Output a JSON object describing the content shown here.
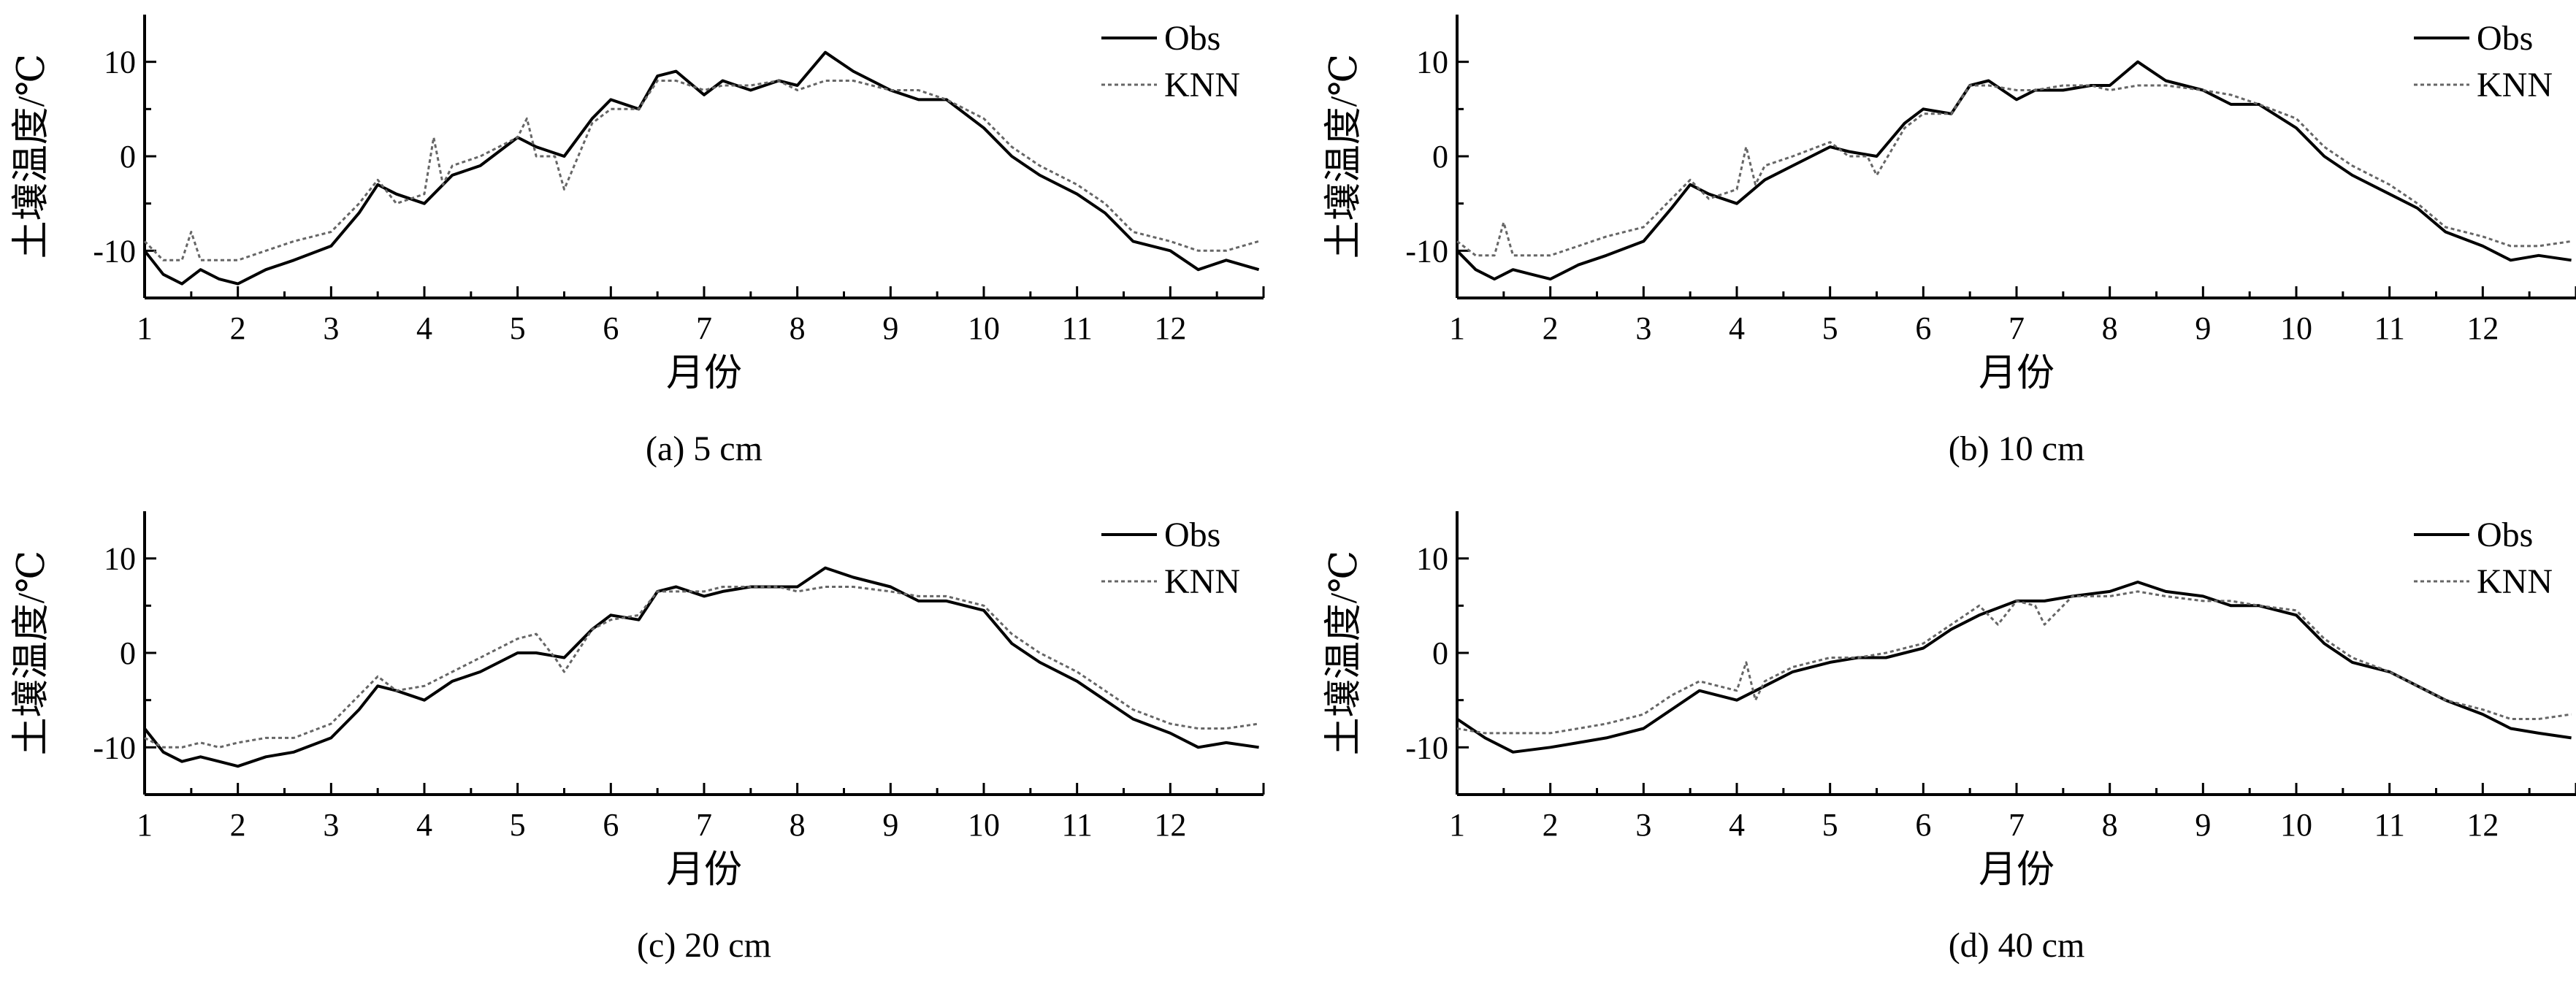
{
  "chart_data": [
    {
      "type": "line",
      "caption": "(a) 5 cm",
      "xlabel": "月份",
      "ylabel": "土壤温度/℃",
      "xlim": [
        1,
        13
      ],
      "ylim": [
        -15,
        15
      ],
      "xticks": [
        1,
        2,
        3,
        4,
        5,
        6,
        7,
        8,
        9,
        10,
        11,
        12
      ],
      "yticks": [
        -10,
        0,
        10
      ],
      "grid": false,
      "legend_position": "top-right",
      "series": [
        {
          "name": "Obs",
          "style": "solid",
          "color": "#000000",
          "x": [
            1.0,
            1.2,
            1.4,
            1.6,
            1.8,
            2.0,
            2.3,
            2.6,
            3.0,
            3.3,
            3.5,
            3.7,
            4.0,
            4.3,
            4.6,
            5.0,
            5.2,
            5.5,
            5.8,
            6.0,
            6.3,
            6.5,
            6.7,
            7.0,
            7.2,
            7.5,
            7.8,
            8.0,
            8.3,
            8.6,
            9.0,
            9.3,
            9.6,
            10.0,
            10.3,
            10.6,
            11.0,
            11.3,
            11.6,
            12.0,
            12.3,
            12.6,
            12.95
          ],
          "y": [
            -10,
            -12.5,
            -13.5,
            -12,
            -13,
            -13.5,
            -12,
            -11,
            -9.5,
            -6,
            -3,
            -4,
            -5,
            -2,
            -1,
            2,
            1,
            0,
            4,
            6,
            5,
            8.5,
            9,
            6.5,
            8,
            7,
            8,
            7.5,
            11,
            9,
            7,
            6,
            6,
            3,
            0,
            -2,
            -4,
            -6,
            -9,
            -10,
            -12,
            -11,
            -12
          ]
        },
        {
          "name": "KNN",
          "style": "dotted",
          "color": "#666666",
          "x": [
            1.0,
            1.2,
            1.4,
            1.5,
            1.6,
            1.8,
            2.0,
            2.3,
            2.6,
            3.0,
            3.3,
            3.5,
            3.7,
            4.0,
            4.1,
            4.2,
            4.3,
            4.6,
            5.0,
            5.1,
            5.2,
            5.4,
            5.5,
            5.8,
            6.0,
            6.3,
            6.5,
            6.7,
            7.0,
            7.2,
            7.5,
            7.8,
            8.0,
            8.3,
            8.6,
            9.0,
            9.3,
            9.6,
            10.0,
            10.3,
            10.6,
            11.0,
            11.3,
            11.6,
            12.0,
            12.3,
            12.6,
            12.95
          ],
          "y": [
            -9,
            -11,
            -11,
            -8,
            -11,
            -11,
            -11,
            -10,
            -9,
            -8,
            -5,
            -2.5,
            -5,
            -4,
            2,
            -3,
            -1,
            0,
            2,
            4,
            0,
            0,
            -3.5,
            3.5,
            5,
            5,
            8,
            8,
            7,
            7.5,
            7.5,
            8,
            7,
            8,
            8,
            7,
            7,
            6,
            4,
            1,
            -1,
            -3,
            -5,
            -8,
            -9,
            -10,
            -10,
            -9
          ]
        }
      ]
    },
    {
      "type": "line",
      "caption": "(b) 10 cm",
      "xlabel": "月份",
      "ylabel": "土壤温度/℃",
      "xlim": [
        1,
        13
      ],
      "ylim": [
        -15,
        15
      ],
      "xticks": [
        1,
        2,
        3,
        4,
        5,
        6,
        7,
        8,
        9,
        10,
        11,
        12
      ],
      "yticks": [
        -10,
        0,
        10
      ],
      "grid": false,
      "legend_position": "top-right",
      "series": [
        {
          "name": "Obs",
          "style": "solid",
          "color": "#000000",
          "x": [
            1.0,
            1.2,
            1.4,
            1.6,
            1.8,
            2.0,
            2.3,
            2.6,
            3.0,
            3.3,
            3.5,
            3.7,
            4.0,
            4.3,
            4.6,
            5.0,
            5.2,
            5.5,
            5.8,
            6.0,
            6.3,
            6.5,
            6.7,
            7.0,
            7.2,
            7.5,
            7.8,
            8.0,
            8.3,
            8.6,
            9.0,
            9.3,
            9.6,
            10.0,
            10.3,
            10.6,
            11.0,
            11.3,
            11.6,
            12.0,
            12.3,
            12.6,
            12.95
          ],
          "y": [
            -10,
            -12,
            -13,
            -12,
            -12.5,
            -13,
            -11.5,
            -10.5,
            -9,
            -5.5,
            -3,
            -4,
            -5,
            -2.5,
            -1,
            1,
            0.5,
            0,
            3.5,
            5,
            4.5,
            7.5,
            8,
            6,
            7,
            7,
            7.5,
            7.5,
            10,
            8,
            7,
            5.5,
            5.5,
            3,
            0,
            -2,
            -4,
            -5.5,
            -8,
            -9.5,
            -11,
            -10.5,
            -11
          ]
        },
        {
          "name": "KNN",
          "style": "dotted",
          "color": "#666666",
          "x": [
            1.0,
            1.2,
            1.4,
            1.5,
            1.6,
            1.8,
            2.0,
            2.3,
            2.6,
            3.0,
            3.3,
            3.5,
            3.7,
            4.0,
            4.1,
            4.2,
            4.3,
            4.6,
            5.0,
            5.2,
            5.4,
            5.5,
            5.8,
            6.0,
            6.3,
            6.5,
            6.7,
            7.0,
            7.2,
            7.5,
            7.8,
            8.0,
            8.3,
            8.6,
            9.0,
            9.3,
            9.6,
            10.0,
            10.3,
            10.6,
            11.0,
            11.3,
            11.6,
            12.0,
            12.3,
            12.6,
            12.95
          ],
          "y": [
            -9,
            -10.5,
            -10.5,
            -7,
            -10.5,
            -10.5,
            -10.5,
            -9.5,
            -8.5,
            -7.5,
            -4.5,
            -2.5,
            -4.5,
            -3.5,
            1,
            -3,
            -1,
            0,
            1.5,
            0,
            0,
            -2,
            3,
            4.5,
            4.5,
            7.5,
            7.5,
            7,
            7,
            7.5,
            7.5,
            7,
            7.5,
            7.5,
            7,
            6.5,
            5.5,
            4,
            1,
            -1,
            -3,
            -5,
            -7.5,
            -8.5,
            -9.5,
            -9.5,
            -9
          ]
        }
      ]
    },
    {
      "type": "line",
      "caption": "(c) 20 cm",
      "xlabel": "月份",
      "ylabel": "土壤温度/℃",
      "xlim": [
        1,
        13
      ],
      "ylim": [
        -15,
        15
      ],
      "xticks": [
        1,
        2,
        3,
        4,
        5,
        6,
        7,
        8,
        9,
        10,
        11,
        12
      ],
      "yticks": [
        -10,
        0,
        10
      ],
      "grid": false,
      "legend_position": "top-right",
      "series": [
        {
          "name": "Obs",
          "style": "solid",
          "color": "#000000",
          "x": [
            1.0,
            1.2,
            1.4,
            1.6,
            1.8,
            2.0,
            2.3,
            2.6,
            3.0,
            3.3,
            3.5,
            3.7,
            4.0,
            4.3,
            4.6,
            5.0,
            5.2,
            5.5,
            5.8,
            6.0,
            6.3,
            6.5,
            6.7,
            7.0,
            7.2,
            7.5,
            7.8,
            8.0,
            8.3,
            8.6,
            9.0,
            9.3,
            9.6,
            10.0,
            10.3,
            10.6,
            11.0,
            11.3,
            11.6,
            12.0,
            12.3,
            12.6,
            12.95
          ],
          "y": [
            -8,
            -10.5,
            -11.5,
            -11,
            -11.5,
            -12,
            -11,
            -10.5,
            -9,
            -6,
            -3.5,
            -4,
            -5,
            -3,
            -2,
            0,
            0,
            -0.5,
            2.5,
            4,
            3.5,
            6.5,
            7,
            6,
            6.5,
            7,
            7,
            7,
            9,
            8,
            7,
            5.5,
            5.5,
            4.5,
            1,
            -1,
            -3,
            -5,
            -7,
            -8.5,
            -10,
            -9.5,
            -10
          ]
        },
        {
          "name": "KNN",
          "style": "dotted",
          "color": "#666666",
          "x": [
            1.0,
            1.2,
            1.4,
            1.6,
            1.8,
            2.0,
            2.3,
            2.6,
            3.0,
            3.3,
            3.5,
            3.7,
            4.0,
            4.3,
            4.6,
            5.0,
            5.2,
            5.4,
            5.5,
            5.8,
            6.0,
            6.3,
            6.5,
            6.7,
            7.0,
            7.2,
            7.5,
            7.8,
            8.0,
            8.3,
            8.6,
            9.0,
            9.3,
            9.6,
            10.0,
            10.3,
            10.6,
            11.0,
            11.3,
            11.6,
            12.0,
            12.3,
            12.6,
            12.95
          ],
          "y": [
            -9,
            -10,
            -10,
            -9.5,
            -10,
            -9.5,
            -9,
            -9,
            -7.5,
            -4.5,
            -2.5,
            -4,
            -3.5,
            -2,
            -0.5,
            1.5,
            2,
            -0.5,
            -2,
            2.5,
            3.5,
            4,
            6.5,
            6.5,
            6.5,
            7,
            7,
            7,
            6.5,
            7,
            7,
            6.5,
            6,
            6,
            5,
            2,
            0,
            -2,
            -4,
            -6,
            -7.5,
            -8,
            -8,
            -7.5
          ]
        }
      ]
    },
    {
      "type": "line",
      "caption": "(d) 40 cm",
      "xlabel": "月份",
      "ylabel": "土壤温度/℃",
      "xlim": [
        1,
        13
      ],
      "ylim": [
        -15,
        15
      ],
      "xticks": [
        1,
        2,
        3,
        4,
        5,
        6,
        7,
        8,
        9,
        10,
        11,
        12
      ],
      "yticks": [
        -10,
        0,
        10
      ],
      "grid": false,
      "legend_position": "top-right",
      "series": [
        {
          "name": "Obs",
          "style": "solid",
          "color": "#000000",
          "x": [
            1.0,
            1.3,
            1.6,
            2.0,
            2.3,
            2.6,
            3.0,
            3.3,
            3.6,
            4.0,
            4.3,
            4.6,
            5.0,
            5.3,
            5.6,
            6.0,
            6.3,
            6.6,
            7.0,
            7.3,
            7.6,
            8.0,
            8.3,
            8.6,
            9.0,
            9.3,
            9.6,
            10.0,
            10.3,
            10.6,
            11.0,
            11.3,
            11.6,
            12.0,
            12.3,
            12.6,
            12.95
          ],
          "y": [
            -7,
            -9,
            -10.5,
            -10,
            -9.5,
            -9,
            -8,
            -6,
            -4,
            -5,
            -3.5,
            -2,
            -1,
            -0.5,
            -0.5,
            0.5,
            2.5,
            4,
            5.5,
            5.5,
            6,
            6.5,
            7.5,
            6.5,
            6,
            5,
            5,
            4,
            1,
            -1,
            -2,
            -3.5,
            -5,
            -6.5,
            -8,
            -8.5,
            -9
          ]
        },
        {
          "name": "KNN",
          "style": "dotted",
          "color": "#666666",
          "x": [
            1.0,
            1.3,
            1.6,
            2.0,
            2.3,
            2.6,
            3.0,
            3.3,
            3.6,
            4.0,
            4.1,
            4.2,
            4.3,
            4.6,
            5.0,
            5.3,
            5.6,
            6.0,
            6.3,
            6.6,
            6.8,
            7.0,
            7.2,
            7.3,
            7.6,
            8.0,
            8.3,
            8.6,
            9.0,
            9.3,
            9.6,
            10.0,
            10.3,
            10.6,
            11.0,
            11.3,
            11.6,
            12.0,
            12.3,
            12.6,
            12.95
          ],
          "y": [
            -8,
            -8.5,
            -8.5,
            -8.5,
            -8,
            -7.5,
            -6.5,
            -4.5,
            -3,
            -4,
            -1,
            -5,
            -3,
            -1.5,
            -0.5,
            -0.5,
            0,
            1,
            3,
            5,
            3,
            5.5,
            5,
            3,
            6,
            6,
            6.5,
            6,
            5.5,
            5.5,
            5,
            4.5,
            1.5,
            -0.5,
            -2,
            -3.5,
            -5,
            -6,
            -7,
            -7,
            -6.5
          ]
        }
      ]
    }
  ]
}
